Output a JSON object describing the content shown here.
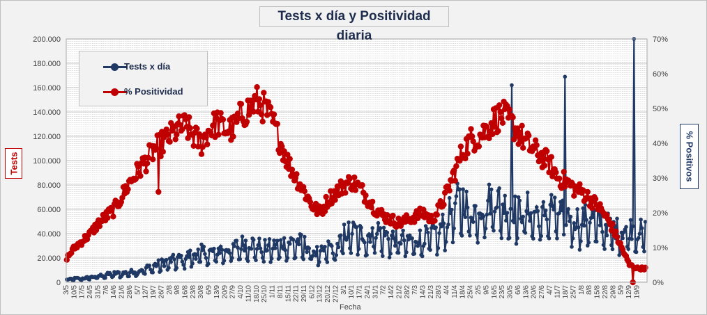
{
  "title": "Tests x día y Positividad  diaria",
  "colors": {
    "tests": "#1f3864",
    "positividad": "#c00000",
    "grid": "#c8c8c8"
  },
  "chart_data": {
    "type": "line",
    "title": "Tests x día y Positividad  diaria",
    "xlabel": "Fecha",
    "ylabel_left": "Tests",
    "ylabel_right": "% Positivos",
    "y_left_ticks": [
      "0",
      "20.000",
      "40.000",
      "60.000",
      "80.000",
      "100.000",
      "120.000",
      "140.000",
      "160.000",
      "180.000",
      "200.000"
    ],
    "y_left_range": [
      0,
      200000
    ],
    "y_right_ticks": [
      "0%",
      "10%",
      "20%",
      "30%",
      "40%",
      "50%",
      "60%",
      "70%"
    ],
    "y_right_range": [
      0,
      70
    ],
    "grid": true,
    "legend": "top-left",
    "x_tick_labels": [
      "3/5",
      "10/5",
      "17/5",
      "24/5",
      "31/5",
      "7/6",
      "14/6",
      "21/6",
      "28/6",
      "5/7",
      "12/7",
      "19/7",
      "26/7",
      "2/8",
      "9/8",
      "16/8",
      "23/8",
      "30/8",
      "6/9",
      "13/9",
      "20/9",
      "27/9",
      "4/10",
      "11/10",
      "18/10",
      "25/10",
      "1/11",
      "8/11",
      "15/11",
      "22/11",
      "29/11",
      "6/12",
      "13/12",
      "20/12",
      "27/12",
      "3/1",
      "10/1",
      "17/1",
      "24/1",
      "31/1",
      "7/2",
      "14/2",
      "21/2",
      "28/2",
      "7/3",
      "14/3",
      "21/3",
      "28/3",
      "4/4",
      "11/4",
      "18/4",
      "25/4",
      "2/5",
      "9/5",
      "16/5",
      "23/5",
      "30/5",
      "6/6",
      "13/6",
      "20/6",
      "27/6",
      "4/7",
      "11/7",
      "18/7",
      "25/7",
      "1/8",
      "8/8",
      "15/8",
      "22/8",
      "29/8",
      "5/9",
      "12/9",
      "19/9"
    ],
    "series": [
      {
        "name": "Tests x día",
        "weekly_values": [
          2000,
          3000,
          3000,
          4000,
          5000,
          6000,
          7000,
          7000,
          8000,
          9000,
          11000,
          13000,
          15000,
          17000,
          18000,
          20000,
          22000,
          24000,
          23000,
          25000,
          26000,
          27000,
          30000,
          31000,
          29000,
          27000,
          28000,
          30000,
          31000,
          32000,
          30000,
          25000,
          22000,
          28000,
          26000,
          38000,
          40000,
          38000,
          36000,
          42000,
          37000,
          35000,
          34000,
          33000,
          34000,
          35000,
          38000,
          40000,
          50000,
          62000,
          65000,
          55000,
          58000,
          62000,
          68000,
          60000,
          58000,
          55000,
          58000,
          55000,
          52000,
          60000,
          55000,
          52000,
          50000,
          48000,
          52000,
          48000,
          45000,
          42000,
          40000,
          42000,
          40000
        ],
        "peaks": [
          {
            "x": "19/5 2021",
            "value": 169000
          },
          {
            "x": "10/7 2021",
            "value": 162000
          },
          {
            "x": "3/9 2021",
            "value": 200000
          }
        ]
      },
      {
        "name": "% Positividad",
        "weekly_values": [
          7,
          10,
          12,
          14,
          17,
          19,
          21,
          25,
          29,
          32,
          35,
          38,
          40,
          42,
          44,
          45,
          42,
          40,
          44,
          46,
          44,
          44,
          48,
          50,
          52,
          50,
          46,
          40,
          34,
          30,
          26,
          22,
          20,
          24,
          26,
          28,
          29,
          27,
          24,
          21,
          19,
          18,
          17,
          18,
          19,
          20,
          18,
          21,
          26,
          32,
          38,
          41,
          42,
          44,
          47,
          48,
          46,
          43,
          40,
          38,
          36,
          34,
          30,
          29,
          27,
          26,
          24,
          22,
          19,
          15,
          10,
          5,
          4
        ],
        "outliers": [
          {
            "x": "4/9 2020",
            "value": 26
          }
        ]
      }
    ]
  },
  "legend_items": [
    {
      "label": "Tests x día"
    },
    {
      "label": "% Positividad"
    }
  ]
}
